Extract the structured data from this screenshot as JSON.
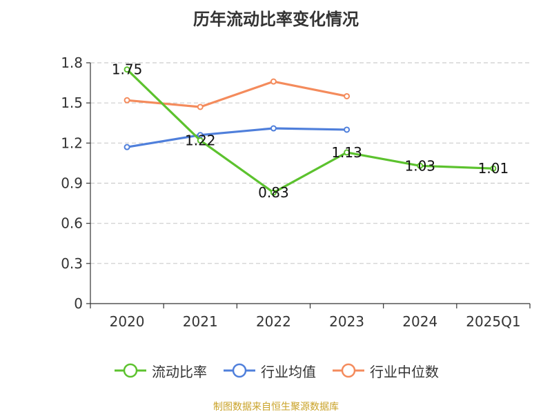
{
  "colors": {
    "current_ratio": "#5cc22e",
    "industry_mean": "#4f7fdb",
    "industry_median": "#f48b5c",
    "grid": "#cccccc",
    "axis": "#333333",
    "source": "#c9a227"
  },
  "chart_data": {
    "type": "line",
    "title": "历年流动比率变化情况",
    "xlabel": "",
    "ylabel": "",
    "categories": [
      "2020",
      "2021",
      "2022",
      "2023",
      "2024",
      "2025Q1"
    ],
    "ylim": [
      0,
      1.8
    ],
    "yticks": [
      "0",
      "0.3",
      "0.6",
      "0.9",
      "1.2",
      "1.5",
      "1.8"
    ],
    "grid": true,
    "legend_position": "bottom",
    "series": [
      {
        "name": "流动比率",
        "color_key": "current_ratio",
        "values": [
          1.75,
          1.22,
          0.83,
          1.13,
          1.03,
          1.01
        ],
        "labels": [
          "1.75",
          "1.22",
          "0.83",
          "1.13",
          "1.03",
          "1.01"
        ]
      },
      {
        "name": "行业均值",
        "color_key": "industry_mean",
        "values": [
          1.17,
          1.26,
          1.31,
          1.3,
          null,
          null
        ]
      },
      {
        "name": "行业中位数",
        "color_key": "industry_median",
        "values": [
          1.52,
          1.47,
          1.66,
          1.55,
          null,
          null
        ]
      }
    ]
  },
  "footer": {
    "source": "制图数据来自恒生聚源数据库"
  }
}
